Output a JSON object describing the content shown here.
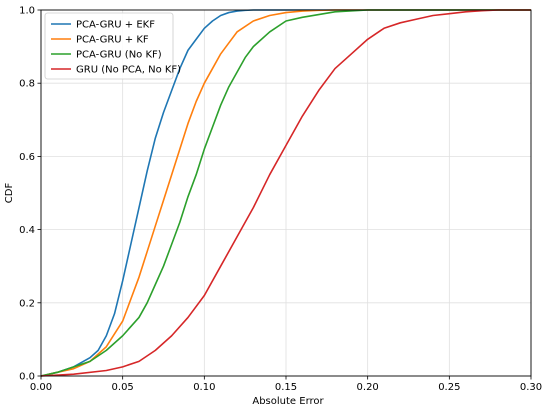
{
  "chart_data": {
    "type": "line",
    "title": "",
    "xlabel": "Absolute Error",
    "ylabel": "CDF",
    "xlim": [
      0.0,
      0.3
    ],
    "ylim": [
      0.0,
      1.0
    ],
    "grid": true,
    "legend_position": "top-left",
    "x_ticks": [
      0.0,
      0.05,
      0.1,
      0.15,
      0.2,
      0.25,
      0.3
    ],
    "x_tick_labels": [
      "0.00",
      "0.05",
      "0.10",
      "0.15",
      "0.20",
      "0.25",
      "0.30"
    ],
    "y_ticks": [
      0.0,
      0.2,
      0.4,
      0.6,
      0.8,
      1.0
    ],
    "y_tick_labels": [
      "0.0",
      "0.2",
      "0.4",
      "0.6",
      "0.8",
      "1.0"
    ],
    "series": [
      {
        "name": "PCA-GRU + EKF",
        "color": "#1f77b4",
        "x": [
          0.0,
          0.01,
          0.02,
          0.03,
          0.035,
          0.04,
          0.045,
          0.05,
          0.055,
          0.06,
          0.065,
          0.07,
          0.075,
          0.08,
          0.085,
          0.09,
          0.095,
          0.1,
          0.105,
          0.11,
          0.115,
          0.12,
          0.125,
          0.13,
          0.14,
          0.15,
          0.3
        ],
        "y": [
          0.0,
          0.01,
          0.025,
          0.05,
          0.07,
          0.11,
          0.17,
          0.26,
          0.36,
          0.46,
          0.56,
          0.65,
          0.72,
          0.78,
          0.84,
          0.89,
          0.92,
          0.95,
          0.97,
          0.985,
          0.993,
          0.997,
          0.999,
          1.0,
          1.0,
          1.0,
          1.0
        ]
      },
      {
        "name": "PCA-GRU + KF",
        "color": "#ff7f0e",
        "x": [
          0.0,
          0.01,
          0.02,
          0.03,
          0.04,
          0.05,
          0.055,
          0.06,
          0.065,
          0.07,
          0.075,
          0.08,
          0.085,
          0.09,
          0.095,
          0.1,
          0.105,
          0.11,
          0.115,
          0.12,
          0.13,
          0.14,
          0.15,
          0.16,
          0.17,
          0.18,
          0.3
        ],
        "y": [
          0.0,
          0.01,
          0.02,
          0.04,
          0.08,
          0.15,
          0.21,
          0.27,
          0.34,
          0.41,
          0.48,
          0.55,
          0.62,
          0.69,
          0.75,
          0.8,
          0.84,
          0.88,
          0.91,
          0.94,
          0.97,
          0.985,
          0.993,
          0.997,
          0.999,
          1.0,
          1.0
        ]
      },
      {
        "name": "PCA-GRU (No KF)",
        "color": "#2ca02c",
        "x": [
          0.0,
          0.01,
          0.02,
          0.03,
          0.04,
          0.05,
          0.06,
          0.065,
          0.07,
          0.075,
          0.08,
          0.085,
          0.09,
          0.095,
          0.1,
          0.105,
          0.11,
          0.115,
          0.12,
          0.125,
          0.13,
          0.14,
          0.15,
          0.16,
          0.18,
          0.2,
          0.3
        ],
        "y": [
          0.0,
          0.01,
          0.025,
          0.04,
          0.07,
          0.11,
          0.16,
          0.2,
          0.25,
          0.3,
          0.36,
          0.42,
          0.49,
          0.55,
          0.62,
          0.68,
          0.74,
          0.79,
          0.83,
          0.87,
          0.9,
          0.94,
          0.97,
          0.98,
          0.995,
          1.0,
          1.0
        ]
      },
      {
        "name": "GRU (No PCA, No KF)",
        "color": "#d62728",
        "x": [
          0.0,
          0.02,
          0.04,
          0.05,
          0.06,
          0.07,
          0.08,
          0.09,
          0.1,
          0.11,
          0.12,
          0.13,
          0.14,
          0.15,
          0.16,
          0.17,
          0.18,
          0.19,
          0.2,
          0.21,
          0.22,
          0.23,
          0.24,
          0.25,
          0.26,
          0.27,
          0.28,
          0.3
        ],
        "y": [
          0.0,
          0.005,
          0.015,
          0.025,
          0.04,
          0.07,
          0.11,
          0.16,
          0.22,
          0.3,
          0.38,
          0.46,
          0.55,
          0.63,
          0.71,
          0.78,
          0.84,
          0.88,
          0.92,
          0.95,
          0.965,
          0.975,
          0.985,
          0.99,
          0.995,
          0.998,
          1.0,
          1.0
        ]
      }
    ]
  }
}
